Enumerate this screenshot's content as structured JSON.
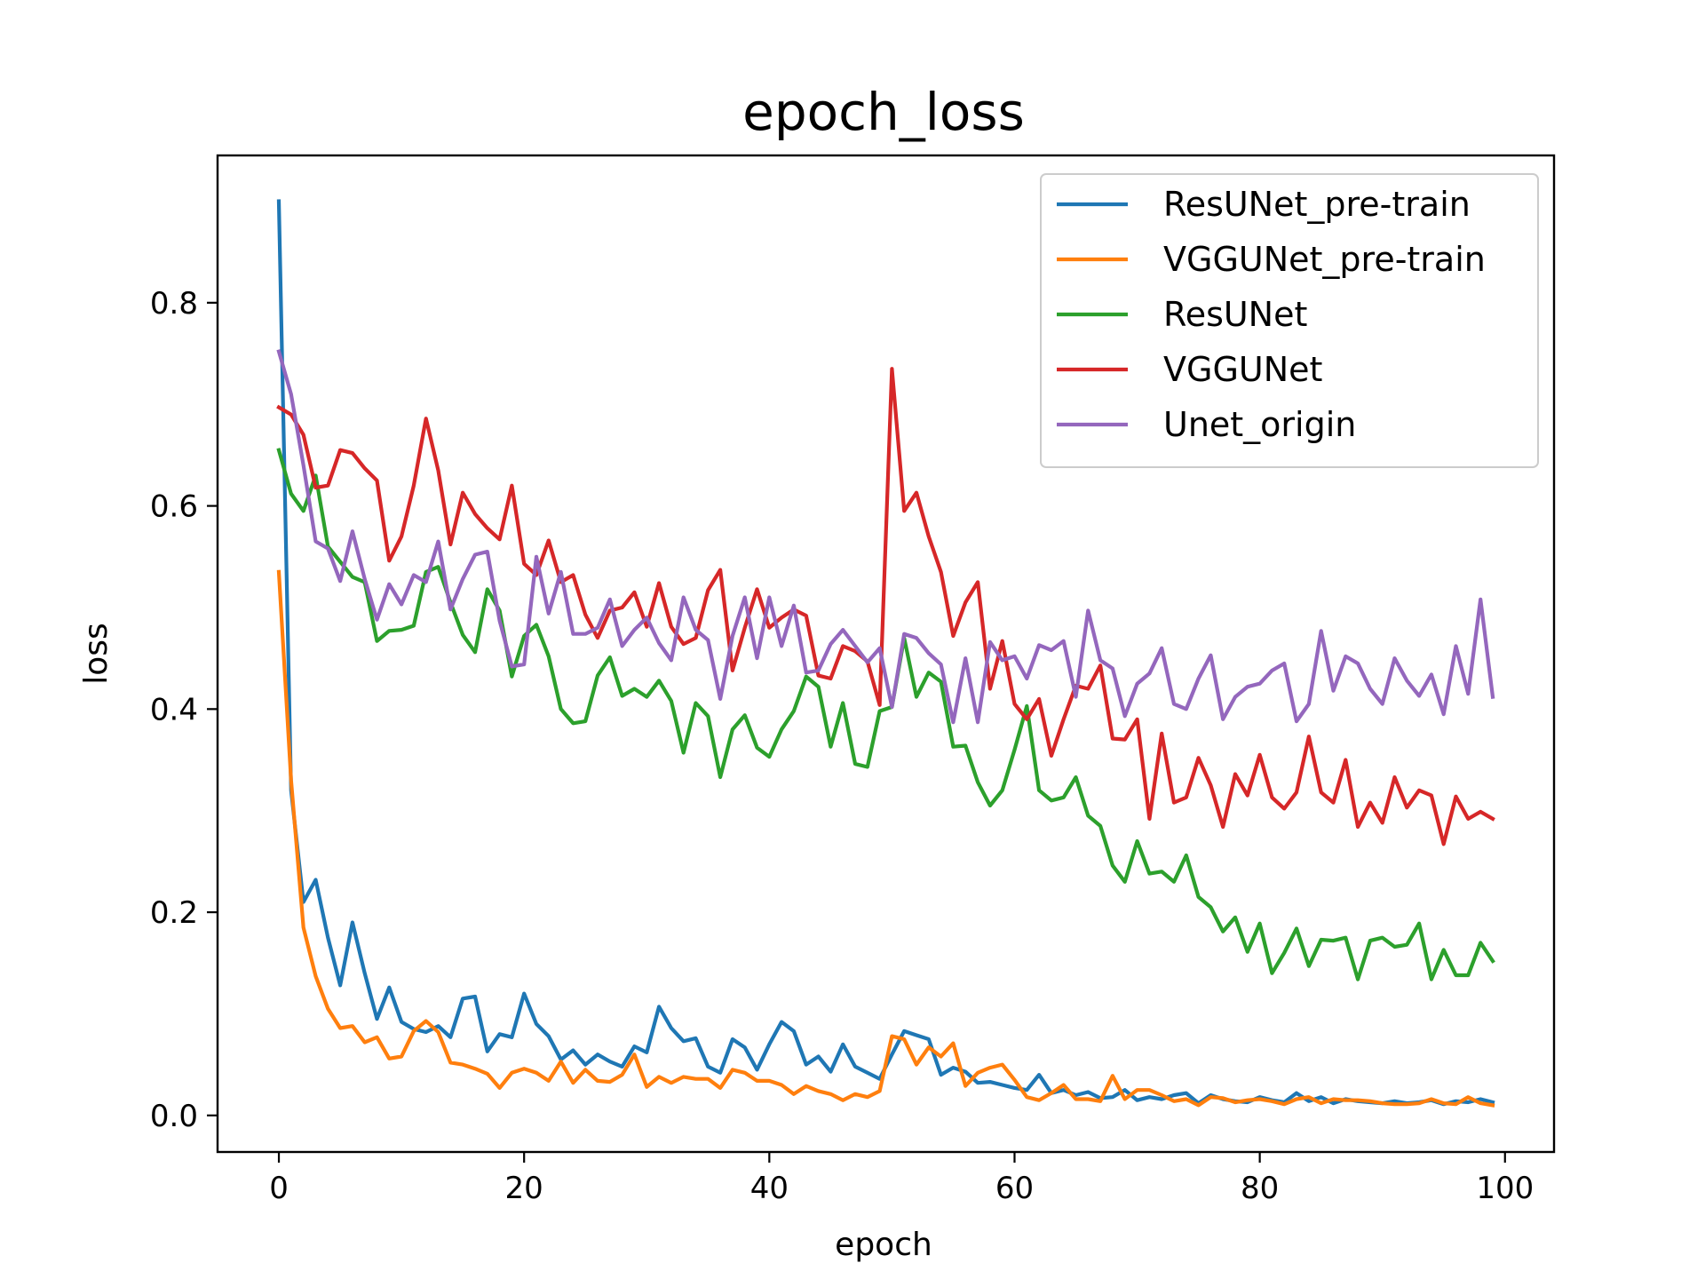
{
  "chart_data": {
    "type": "line",
    "title": "epoch_loss",
    "xlabel": "epoch",
    "ylabel": "loss",
    "xlim": [
      -5,
      104
    ],
    "ylim": [
      -0.036,
      0.945
    ],
    "x_ticks": [
      0,
      20,
      40,
      60,
      80,
      100
    ],
    "y_ticks": [
      0.0,
      0.2,
      0.4,
      0.6,
      0.8
    ],
    "x_tick_labels": [
      "0",
      "20",
      "40",
      "60",
      "80",
      "100"
    ],
    "y_tick_labels": [
      "0.0",
      "0.2",
      "0.4",
      "0.6",
      "0.8"
    ],
    "grid": false,
    "legend_position": "top-right",
    "x": [
      0,
      1,
      2,
      3,
      4,
      5,
      6,
      7,
      8,
      9,
      10,
      11,
      12,
      13,
      14,
      15,
      16,
      17,
      18,
      19,
      20,
      21,
      22,
      23,
      24,
      25,
      26,
      27,
      28,
      29,
      30,
      31,
      32,
      33,
      34,
      35,
      36,
      37,
      38,
      39,
      40,
      41,
      42,
      43,
      44,
      45,
      46,
      47,
      48,
      49,
      50,
      51,
      52,
      53,
      54,
      55,
      56,
      57,
      58,
      59,
      60,
      61,
      62,
      63,
      64,
      65,
      66,
      67,
      68,
      69,
      70,
      71,
      72,
      73,
      74,
      75,
      76,
      77,
      78,
      79,
      80,
      81,
      82,
      83,
      84,
      85,
      86,
      87,
      88,
      89,
      90,
      91,
      92,
      93,
      94,
      95,
      96,
      97,
      98,
      99
    ],
    "series": [
      {
        "name": "ResUNet_pre-train",
        "color": "#1f77b4",
        "values": [
          0.9,
          0.32,
          0.21,
          0.232,
          0.175,
          0.128,
          0.19,
          0.14,
          0.095,
          0.126,
          0.092,
          0.085,
          0.082,
          0.088,
          0.077,
          0.115,
          0.117,
          0.063,
          0.08,
          0.077,
          0.12,
          0.09,
          0.078,
          0.055,
          0.064,
          0.05,
          0.06,
          0.053,
          0.048,
          0.068,
          0.062,
          0.107,
          0.086,
          0.073,
          0.076,
          0.048,
          0.042,
          0.075,
          0.067,
          0.045,
          0.07,
          0.092,
          0.083,
          0.05,
          0.058,
          0.043,
          0.07,
          0.048,
          0.042,
          0.036,
          0.06,
          0.083,
          0.079,
          0.075,
          0.04,
          0.047,
          0.043,
          0.032,
          0.033,
          0.03,
          0.027,
          0.025,
          0.04,
          0.022,
          0.025,
          0.02,
          0.023,
          0.017,
          0.018,
          0.025,
          0.015,
          0.018,
          0.016,
          0.02,
          0.022,
          0.012,
          0.02,
          0.016,
          0.014,
          0.013,
          0.018,
          0.015,
          0.013,
          0.022,
          0.014,
          0.018,
          0.012,
          0.016,
          0.014,
          0.013,
          0.012,
          0.014,
          0.012,
          0.013,
          0.015,
          0.011,
          0.014,
          0.013,
          0.016,
          0.013
        ]
      },
      {
        "name": "VGGUNet_pre-train",
        "color": "#ff7f0e",
        "values": [
          0.535,
          0.33,
          0.185,
          0.137,
          0.105,
          0.086,
          0.088,
          0.072,
          0.077,
          0.056,
          0.058,
          0.083,
          0.093,
          0.082,
          0.052,
          0.05,
          0.046,
          0.041,
          0.027,
          0.042,
          0.046,
          0.042,
          0.034,
          0.053,
          0.032,
          0.045,
          0.034,
          0.033,
          0.04,
          0.06,
          0.028,
          0.038,
          0.032,
          0.038,
          0.036,
          0.036,
          0.027,
          0.045,
          0.042,
          0.034,
          0.034,
          0.03,
          0.021,
          0.029,
          0.024,
          0.021,
          0.015,
          0.021,
          0.018,
          0.024,
          0.078,
          0.075,
          0.05,
          0.067,
          0.058,
          0.071,
          0.029,
          0.042,
          0.047,
          0.05,
          0.035,
          0.018,
          0.015,
          0.022,
          0.03,
          0.016,
          0.016,
          0.014,
          0.039,
          0.016,
          0.025,
          0.025,
          0.02,
          0.014,
          0.016,
          0.01,
          0.018,
          0.017,
          0.013,
          0.015,
          0.016,
          0.014,
          0.011,
          0.016,
          0.018,
          0.012,
          0.016,
          0.015,
          0.015,
          0.014,
          0.012,
          0.011,
          0.011,
          0.012,
          0.016,
          0.012,
          0.011,
          0.018,
          0.012,
          0.01
        ]
      },
      {
        "name": "ResUNet",
        "color": "#2ca02c",
        "values": [
          0.655,
          0.612,
          0.595,
          0.63,
          0.56,
          0.545,
          0.53,
          0.525,
          0.467,
          0.477,
          0.478,
          0.482,
          0.535,
          0.54,
          0.505,
          0.473,
          0.456,
          0.518,
          0.497,
          0.432,
          0.472,
          0.483,
          0.452,
          0.4,
          0.386,
          0.388,
          0.433,
          0.451,
          0.413,
          0.42,
          0.412,
          0.428,
          0.408,
          0.357,
          0.406,
          0.393,
          0.333,
          0.38,
          0.394,
          0.362,
          0.353,
          0.38,
          0.398,
          0.432,
          0.422,
          0.363,
          0.406,
          0.346,
          0.343,
          0.398,
          0.402,
          0.47,
          0.412,
          0.436,
          0.427,
          0.363,
          0.364,
          0.328,
          0.305,
          0.32,
          0.36,
          0.403,
          0.32,
          0.31,
          0.313,
          0.333,
          0.295,
          0.285,
          0.246,
          0.23,
          0.27,
          0.238,
          0.24,
          0.23,
          0.256,
          0.215,
          0.205,
          0.181,
          0.195,
          0.161,
          0.189,
          0.14,
          0.16,
          0.184,
          0.147,
          0.173,
          0.172,
          0.175,
          0.134,
          0.172,
          0.175,
          0.166,
          0.168,
          0.189,
          0.134,
          0.163,
          0.138,
          0.138,
          0.17,
          0.152
        ]
      },
      {
        "name": "VGGUNet",
        "color": "#d62728",
        "values": [
          0.697,
          0.69,
          0.67,
          0.618,
          0.62,
          0.655,
          0.652,
          0.637,
          0.625,
          0.546,
          0.57,
          0.62,
          0.686,
          0.635,
          0.562,
          0.613,
          0.592,
          0.578,
          0.567,
          0.62,
          0.543,
          0.532,
          0.566,
          0.525,
          0.532,
          0.493,
          0.47,
          0.497,
          0.5,
          0.515,
          0.481,
          0.524,
          0.481,
          0.464,
          0.47,
          0.517,
          0.537,
          0.438,
          0.48,
          0.518,
          0.48,
          0.49,
          0.498,
          0.492,
          0.433,
          0.43,
          0.462,
          0.457,
          0.447,
          0.404,
          0.735,
          0.595,
          0.613,
          0.57,
          0.535,
          0.472,
          0.505,
          0.525,
          0.42,
          0.467,
          0.405,
          0.39,
          0.41,
          0.354,
          0.39,
          0.423,
          0.42,
          0.443,
          0.371,
          0.37,
          0.39,
          0.292,
          0.376,
          0.308,
          0.313,
          0.352,
          0.325,
          0.284,
          0.336,
          0.315,
          0.355,
          0.313,
          0.302,
          0.318,
          0.373,
          0.318,
          0.308,
          0.35,
          0.284,
          0.308,
          0.288,
          0.333,
          0.303,
          0.32,
          0.315,
          0.267,
          0.314,
          0.292,
          0.299,
          0.292
        ]
      },
      {
        "name": "Unet_origin",
        "color": "#9467bd",
        "values": [
          0.752,
          0.71,
          0.64,
          0.565,
          0.558,
          0.526,
          0.575,
          0.528,
          0.488,
          0.523,
          0.503,
          0.532,
          0.525,
          0.565,
          0.498,
          0.528,
          0.552,
          0.555,
          0.487,
          0.442,
          0.444,
          0.55,
          0.494,
          0.535,
          0.474,
          0.474,
          0.48,
          0.508,
          0.462,
          0.478,
          0.49,
          0.465,
          0.448,
          0.51,
          0.478,
          0.468,
          0.41,
          0.472,
          0.51,
          0.45,
          0.51,
          0.462,
          0.502,
          0.436,
          0.438,
          0.464,
          0.478,
          0.462,
          0.446,
          0.46,
          0.402,
          0.474,
          0.47,
          0.455,
          0.444,
          0.387,
          0.45,
          0.387,
          0.466,
          0.448,
          0.452,
          0.43,
          0.463,
          0.458,
          0.467,
          0.412,
          0.497,
          0.448,
          0.44,
          0.393,
          0.425,
          0.435,
          0.46,
          0.405,
          0.4,
          0.43,
          0.453,
          0.39,
          0.412,
          0.422,
          0.425,
          0.438,
          0.445,
          0.388,
          0.405,
          0.477,
          0.418,
          0.452,
          0.445,
          0.42,
          0.405,
          0.45,
          0.428,
          0.413,
          0.434,
          0.395,
          0.462,
          0.415,
          0.508,
          0.412
        ]
      }
    ]
  }
}
